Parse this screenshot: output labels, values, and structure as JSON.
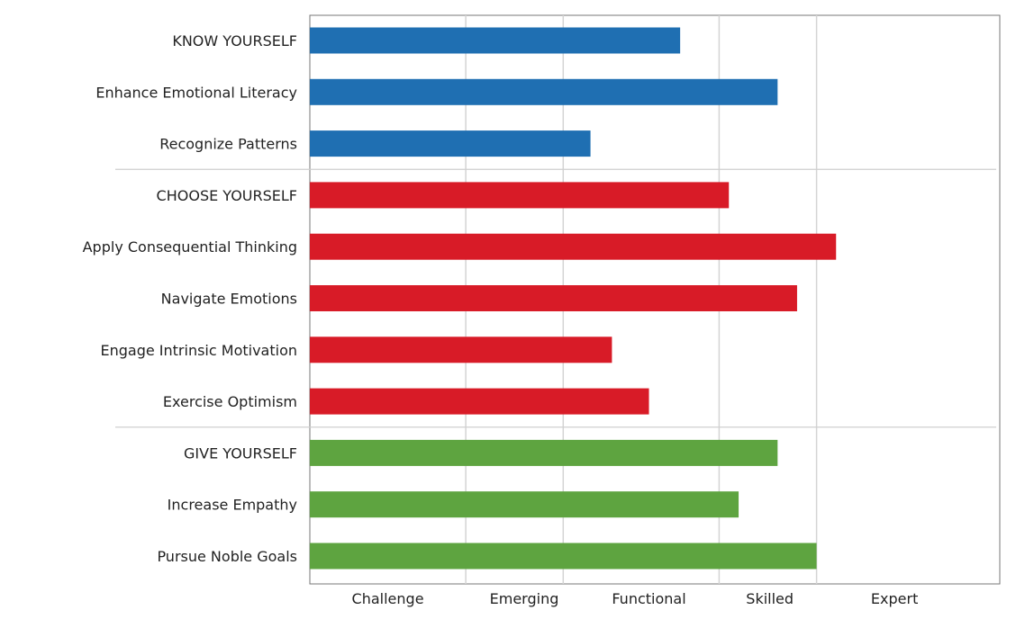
{
  "chart_data": {
    "type": "bar",
    "orientation": "horizontal",
    "categories": [
      "KNOW YOURSELF",
      "Enhance Emotional Literacy",
      "Recognize Patterns",
      "CHOOSE YOURSELF",
      "Apply Consequential Thinking",
      "Navigate Emotions",
      "Engage Intrinsic Motivation",
      "Exercise Optimism",
      "GIVE YOURSELF",
      "Increase Empathy",
      "Pursue Noble Goals"
    ],
    "values": [
      95,
      120,
      72,
      107.5,
      135,
      125,
      77.5,
      87,
      120,
      110,
      130
    ],
    "bar_colors": [
      "#1f6fb2",
      "#1f6fb2",
      "#1f6fb2",
      "#d81b27",
      "#d81b27",
      "#d81b27",
      "#d81b27",
      "#d81b27",
      "#5ea440",
      "#5ea440",
      "#5ea440"
    ],
    "groups": [
      {
        "color": "#1f6fb2",
        "count": 3
      },
      {
        "color": "#d81b27",
        "count": 5
      },
      {
        "color": "#5ea440",
        "count": 3
      }
    ],
    "x_ticks": [
      {
        "label": "Challenge",
        "value": 20
      },
      {
        "label": "Emerging",
        "value": 55
      },
      {
        "label": "Functional",
        "value": 87
      },
      {
        "label": "Skilled",
        "value": 118
      },
      {
        "label": "Expert",
        "value": 150
      }
    ],
    "gridlines": [
      40,
      65,
      105,
      130
    ],
    "xlim": [
      0,
      177
    ],
    "title": "",
    "xlabel": "",
    "ylabel": "",
    "grid": true,
    "legend": "none"
  }
}
